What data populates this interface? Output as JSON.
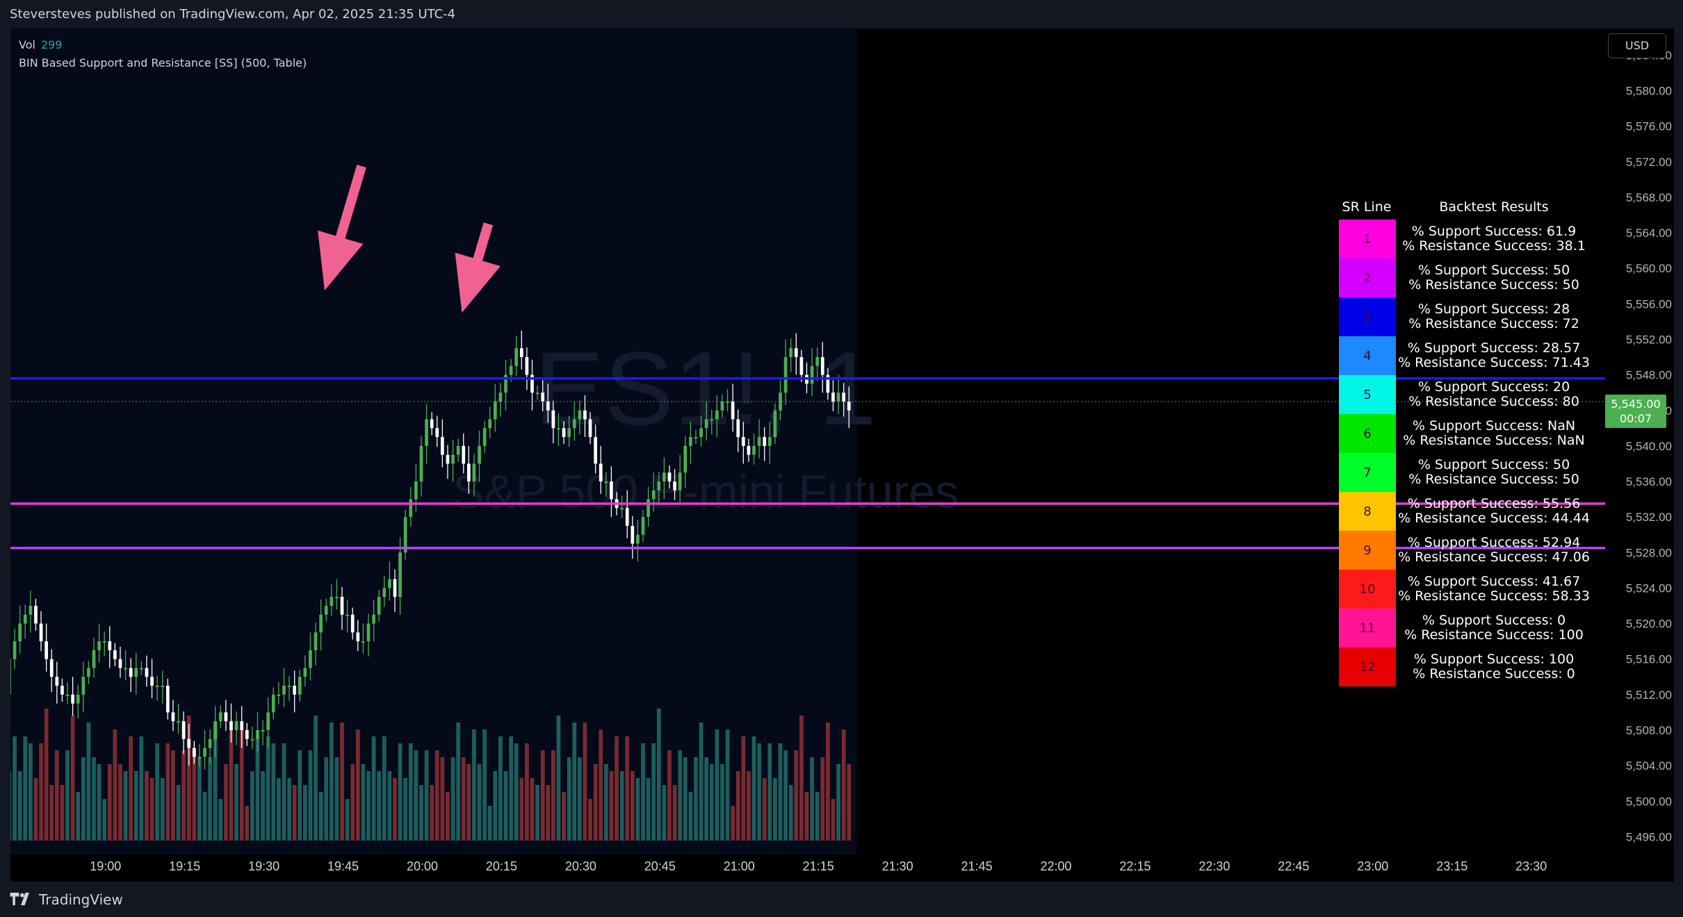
{
  "header": {
    "publisher_line": "Steversteves published on TradingView.com, Apr 02, 2025 21:35 UTC-4"
  },
  "legend": {
    "vol_label": "Vol",
    "vol_value": "299",
    "indicator": "BIN Based Support and Resistance [SS] (500, Table)"
  },
  "currency": "USD",
  "watermark": {
    "symbol": "ES1!, 1",
    "name": "S&P 500 E-mini Futures"
  },
  "footer": {
    "brand": "TradingView"
  },
  "colors": {
    "up": "#26a69a",
    "down": "#ef5350",
    "candle_up": "#4caf50",
    "candle_down": "#ffffff",
    "plot_bg": "#050a1a",
    "future_bg": "#000000"
  },
  "chart_data": {
    "type": "candlestick",
    "xlabel": "",
    "ylabel": "",
    "x_ticks": [
      "19:00",
      "19:15",
      "19:30",
      "19:45",
      "20:00",
      "20:15",
      "20:30",
      "20:45",
      "21:00",
      "21:15",
      "21:30",
      "21:45",
      "22:00",
      "22:15",
      "22:30",
      "22:45",
      "23:00",
      "23:15",
      "23:30"
    ],
    "x_range_minutes": [
      1122,
      1424
    ],
    "y_ticks": [
      "5,584.00",
      "5,580.00",
      "5,576.00",
      "5,572.00",
      "5,568.00",
      "5,564.00",
      "5,560.00",
      "5,556.00",
      "5,552.00",
      "5,548.00",
      "5,544.00",
      "5,540.00",
      "5,536.00",
      "5,532.00",
      "5,528.00",
      "5,524.00",
      "5,520.00",
      "5,516.00",
      "5,512.00",
      "5,508.00",
      "5,504.00",
      "5,500.00",
      "5,496.00"
    ],
    "y_range": [
      5494,
      5587
    ],
    "last_price": "5,545.00",
    "countdown": "00:07",
    "current_price_value": 5545,
    "sr_lines": [
      {
        "price": 5547.6,
        "color": "#1a1aff"
      },
      {
        "price": 5533.5,
        "color": "#e040c8"
      },
      {
        "price": 5528.5,
        "color": "#c040ff"
      }
    ],
    "annotations": [
      {
        "type": "arrow",
        "color": "#f06292",
        "from_minute": 1188.5,
        "from_price": 5571.5,
        "to_minute": 1181.5,
        "to_price": 5557.5
      },
      {
        "type": "arrow",
        "color": "#f06292",
        "from_minute": 1212.5,
        "from_price": 5565.0,
        "to_minute": 1207.5,
        "to_price": 5555.0
      }
    ],
    "candles_close": [
      5527.0,
      5531.0,
      5533.0,
      5531.0,
      5530.0,
      5532.0,
      5531.0,
      5529.0,
      5528.0,
      5529.0,
      5527.0,
      5525.0,
      5521.0,
      5518.0,
      5515.0,
      5511.0,
      5507.0,
      5507.0,
      5509.0,
      5512.0,
      5516.0,
      5518.0,
      5520.0,
      5521.0,
      5522.0,
      5520.0,
      5518.0,
      5516.0,
      5514.0,
      5513.0,
      5512.0,
      5512.0,
      5511.0,
      5512.0,
      5514.0,
      5515.0,
      5517.0,
      5518.0,
      5518.0,
      5517.0,
      5516.0,
      5515.0,
      5515.0,
      5514.0,
      5515.0,
      5515.0,
      5514.0,
      5513.0,
      5513.0,
      5513.0,
      5510.0,
      5509.0,
      5509.0,
      5507.0,
      5506.0,
      5505.0,
      5505.0,
      5506.0,
      5507.0,
      5509.0,
      5510.0,
      5509.0,
      5508.0,
      5509.0,
      5508.0,
      5507.0,
      5507.0,
      5508.0,
      5508.0,
      5510.0,
      5512.0,
      5512.0,
      5513.0,
      5513.0,
      5512.0,
      5514.0,
      5515.0,
      5517.0,
      5519.0,
      5521.0,
      5522.0,
      5523.0,
      5523.0,
      5521.0,
      5521.0,
      5519.0,
      5518.0,
      5518.0,
      5520.0,
      5521.0,
      5523.0,
      5524.0,
      5525.0,
      5523.0,
      5528.0,
      5532.0,
      5534.0,
      5536.0,
      5540.0,
      5543.0,
      5542.0,
      5541.0,
      5539.0,
      5538.0,
      5539.0,
      5540.0,
      5538.0,
      5536.0,
      5538.0,
      5540.0,
      5542.0,
      5543.0,
      5545.0,
      5546.0,
      5548.0,
      5549.0,
      5551.0,
      5550.0,
      5548.0,
      5546.0,
      5546.0,
      5545.0,
      5544.0,
      5542.0,
      5542.0,
      5541.0,
      5542.0,
      5543.0,
      5544.0,
      5543.0,
      5541.0,
      5538.0,
      5536.0,
      5536.0,
      5534.0,
      5533.0,
      5533.0,
      5531.0,
      5529.0,
      5530.0,
      5532.0,
      5534.0,
      5535.0,
      5536.0,
      5537.0,
      5536.0,
      5535.0,
      5537.0,
      5540.0,
      5541.0,
      5541.0,
      5542.0,
      5543.0,
      5543.0,
      5544.0,
      5545.0,
      5545.0,
      5543.0,
      5541.0,
      5540.0,
      5539.0,
      5540.0,
      5541.0,
      5540.0,
      5541.0,
      5544.0,
      5546.0,
      5550.0,
      5551.0,
      5550.0,
      5548.0,
      5547.0,
      5549.0,
      5550.0,
      5548.0,
      5546.0,
      5545.0,
      5546.0,
      5545.0,
      5544.0
    ],
    "volume_max_label": "",
    "table": {
      "headers": [
        "SR Line",
        "Backtest Results"
      ],
      "rows": [
        {
          "line": "1",
          "color": "#ff00e0",
          "support": "% Support Success: 61.9",
          "resistance": "% Resistance Success: 38.1"
        },
        {
          "line": "2",
          "color": "#d400ff",
          "support": "% Support Success: 50",
          "resistance": "% Resistance Success: 50"
        },
        {
          "line": "3",
          "color": "#0000e6",
          "support": "% Support Success: 28",
          "resistance": "% Resistance Success: 72"
        },
        {
          "line": "4",
          "color": "#1e88ff",
          "support": "% Support Success: 28.57",
          "resistance": "% Resistance Success: 71.43"
        },
        {
          "line": "5",
          "color": "#00f5e4",
          "support": "% Support Success: 20",
          "resistance": "% Resistance Success: 80"
        },
        {
          "line": "6",
          "color": "#00e600",
          "support": "% Support Success: NaN",
          "resistance": "% Resistance Success: NaN"
        },
        {
          "line": "7",
          "color": "#00ff2a",
          "support": "% Support Success: 50",
          "resistance": "% Resistance Success: 50"
        },
        {
          "line": "8",
          "color": "#ffc400",
          "support": "% Support Success: 55.56",
          "resistance": "% Resistance Success: 44.44"
        },
        {
          "line": "9",
          "color": "#ff7a00",
          "support": "% Support Success: 52.94",
          "resistance": "% Resistance Success: 47.06"
        },
        {
          "line": "10",
          "color": "#ff1a1a",
          "support": "% Support Success: 41.67",
          "resistance": "% Resistance Success: 58.33"
        },
        {
          "line": "11",
          "color": "#ff1493",
          "support": "% Support Success: 0",
          "resistance": "% Resistance Success: 100"
        },
        {
          "line": "12",
          "color": "#e60000",
          "support": "% Support Success: 100",
          "resistance": "% Resistance Success: 0"
        }
      ]
    }
  }
}
